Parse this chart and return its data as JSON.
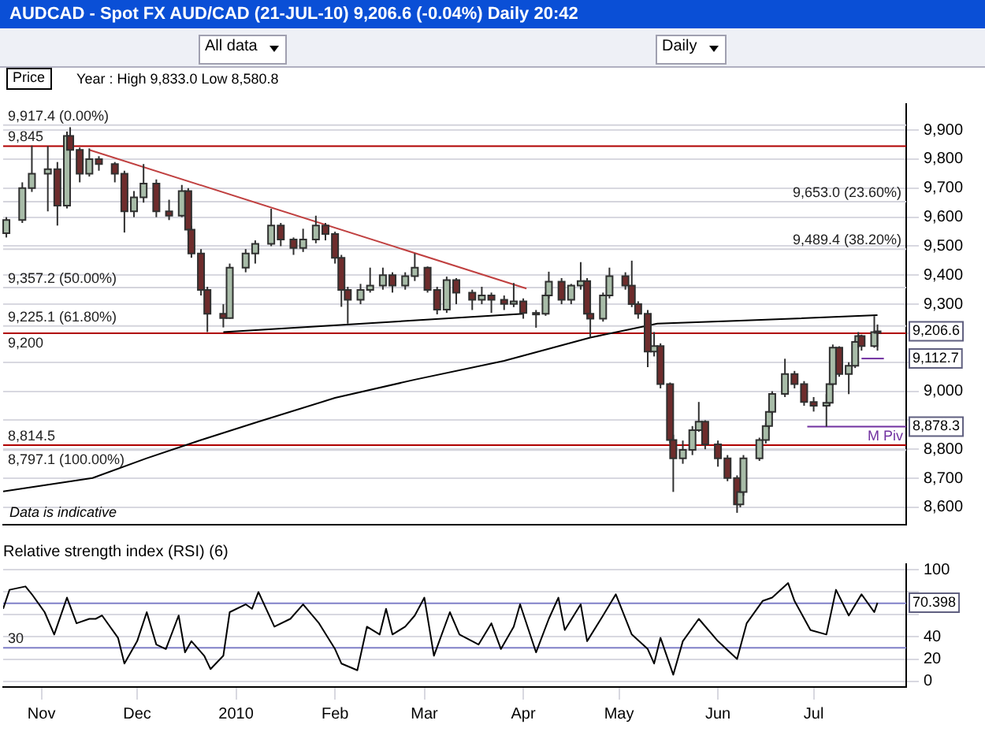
{
  "chart_data": [
    {
      "type": "candlestick",
      "title": "AUDCAD - Spot FX AUD/CAD (21-JUL-10)   9,206.6 (-0.04%)   Daily  20:42",
      "subtitle": "Year : High 9,833.0 Low 8,580.8",
      "ylabel": "Price",
      "x": [
        "2009-10-21",
        "2009-10-26",
        "2009-10-29",
        "2009-11-03",
        "2009-11-06",
        "2009-11-09",
        "2009-11-10",
        "2009-11-13",
        "2009-11-16",
        "2009-11-19",
        "2009-11-24",
        "2009-11-27",
        "2009-11-30",
        "2009-12-03",
        "2009-12-07",
        "2009-12-11",
        "2009-12-15",
        "2009-12-17",
        "2009-12-18",
        "2009-12-21",
        "2009-12-23",
        "2009-12-28",
        "2009-12-30",
        "2010-01-04",
        "2010-01-07",
        "2010-01-12",
        "2010-01-15",
        "2010-01-19",
        "2010-01-22",
        "2010-01-26",
        "2010-01-29",
        "2010-02-01",
        "2010-02-03",
        "2010-02-05",
        "2010-02-09",
        "2010-02-12",
        "2010-02-16",
        "2010-02-19",
        "2010-02-23",
        "2010-02-26",
        "2010-03-02",
        "2010-03-05",
        "2010-03-08",
        "2010-03-11",
        "2010-03-16",
        "2010-03-19",
        "2010-03-22",
        "2010-03-26",
        "2010-03-29",
        "2010-04-01",
        "2010-04-05",
        "2010-04-08",
        "2010-04-09",
        "2010-04-13",
        "2010-04-16",
        "2010-04-19",
        "2010-04-21",
        "2010-04-22",
        "2010-04-26",
        "2010-04-28",
        "2010-05-03",
        "2010-05-05",
        "2010-05-07",
        "2010-05-10",
        "2010-05-12",
        "2010-05-14",
        "2010-05-17",
        "2010-05-18",
        "2010-05-21",
        "2010-05-24",
        "2010-05-26",
        "2010-05-28",
        "2010-06-01",
        "2010-06-04",
        "2010-06-07",
        "2010-06-08",
        "2010-06-09",
        "2010-06-14",
        "2010-06-16",
        "2010-06-17",
        "2010-06-18",
        "2010-06-22",
        "2010-06-25",
        "2010-06-28",
        "2010-07-01",
        "2010-07-05",
        "2010-07-06",
        "2010-07-07",
        "2010-07-09",
        "2010-07-12",
        "2010-07-14",
        "2010-07-15",
        "2010-07-16",
        "2010-07-20",
        "2010-07-21"
      ],
      "ohlc": [
        [
          9545,
          9600,
          9530,
          9590
        ],
        [
          9590,
          9720,
          9580,
          9700
        ],
        [
          9700,
          9847,
          9687,
          9750
        ],
        [
          9750,
          9845,
          9620,
          9765
        ],
        [
          9765,
          9790,
          9571,
          9640
        ],
        [
          9640,
          9895,
          9630,
          9880
        ],
        [
          9880,
          9910,
          9820,
          9832
        ],
        [
          9832,
          9840,
          9720,
          9750
        ],
        [
          9750,
          9837,
          9740,
          9800
        ],
        [
          9800,
          9810,
          9760,
          9783
        ],
        [
          9783,
          9790,
          9720,
          9750
        ],
        [
          9750,
          9760,
          9547,
          9620
        ],
        [
          9620,
          9690,
          9600,
          9668
        ],
        [
          9668,
          9783,
          9650,
          9716
        ],
        [
          9716,
          9730,
          9600,
          9620
        ],
        [
          9620,
          9660,
          9590,
          9605
        ],
        [
          9605,
          9711,
          9600,
          9690
        ],
        [
          9690,
          9700,
          9540,
          9557
        ],
        [
          9557,
          9570,
          9460,
          9475
        ],
        [
          9475,
          9490,
          9330,
          9349
        ],
        [
          9349,
          9360,
          9204,
          9267
        ],
        [
          9267,
          9300,
          9220,
          9252
        ],
        [
          9252,
          9440,
          9250,
          9426
        ],
        [
          9426,
          9490,
          9410,
          9475
        ],
        [
          9475,
          9520,
          9440,
          9508
        ],
        [
          9508,
          9629,
          9500,
          9571
        ],
        [
          9571,
          9580,
          9500,
          9523
        ],
        [
          9523,
          9530,
          9470,
          9494
        ],
        [
          9494,
          9560,
          9480,
          9523
        ],
        [
          9523,
          9605,
          9510,
          9571
        ],
        [
          9571,
          9580,
          9520,
          9542
        ],
        [
          9542,
          9550,
          9440,
          9460
        ],
        [
          9460,
          9470,
          9291,
          9349
        ],
        [
          9349,
          9360,
          9233,
          9315
        ],
        [
          9315,
          9370,
          9300,
          9349
        ],
        [
          9349,
          9426,
          9340,
          9364
        ],
        [
          9364,
          9426,
          9350,
          9400
        ],
        [
          9400,
          9410,
          9340,
          9364
        ],
        [
          9364,
          9410,
          9350,
          9397
        ],
        [
          9397,
          9475,
          9380,
          9426
        ],
        [
          9426,
          9430,
          9340,
          9349
        ],
        [
          9349,
          9360,
          9265,
          9281
        ],
        [
          9281,
          9395,
          9270,
          9383
        ],
        [
          9383,
          9390,
          9300,
          9340
        ],
        [
          9340,
          9350,
          9280,
          9315
        ],
        [
          9315,
          9360,
          9300,
          9330
        ],
        [
          9330,
          9340,
          9270,
          9315
        ],
        [
          9315,
          9330,
          9280,
          9301
        ],
        [
          9301,
          9373,
          9290,
          9310
        ],
        [
          9310,
          9320,
          9250,
          9270
        ],
        [
          9270,
          9280,
          9219,
          9267
        ],
        [
          9267,
          9340,
          9260,
          9330
        ],
        [
          9330,
          9412,
          9320,
          9378
        ],
        [
          9378,
          9390,
          9300,
          9315
        ],
        [
          9315,
          9370,
          9300,
          9364
        ],
        [
          9364,
          9445,
          9350,
          9380
        ],
        [
          9380,
          9390,
          9260,
          9267
        ],
        [
          9267,
          9280,
          9185,
          9250
        ],
        [
          9250,
          9340,
          9240,
          9330
        ],
        [
          9330,
          9426,
          9320,
          9397
        ],
        [
          9397,
          9410,
          9350,
          9364
        ],
        [
          9364,
          9450,
          9290,
          9300
        ],
        [
          9300,
          9310,
          9250,
          9267
        ],
        [
          9267,
          9280,
          9083,
          9137
        ],
        [
          9137,
          9204,
          9120,
          9156
        ],
        [
          9156,
          9165,
          9010,
          9025
        ],
        [
          9025,
          9030,
          8820,
          8832
        ],
        [
          8832,
          8850,
          8653,
          8769
        ],
        [
          8769,
          8830,
          8750,
          8798
        ],
        [
          8798,
          8880,
          8780,
          8866
        ],
        [
          8866,
          8963,
          8860,
          8895
        ],
        [
          8895,
          8900,
          8800,
          8817
        ],
        [
          8817,
          8830,
          8740,
          8769
        ],
        [
          8769,
          8780,
          8690,
          8701
        ],
        [
          8701,
          8710,
          8581,
          8610
        ],
        [
          8610,
          8660,
          8600,
          8653
        ],
        [
          8653,
          8780,
          8640,
          8769
        ],
        [
          8769,
          8840,
          8760,
          8832
        ],
        [
          8832,
          8890,
          8820,
          8880
        ],
        [
          8880,
          8935,
          8870,
          8929
        ],
        [
          8929,
          9000,
          8920,
          8991
        ],
        [
          8991,
          9112,
          8980,
          9059
        ],
        [
          9059,
          9070,
          9010,
          9025
        ],
        [
          9025,
          9035,
          8950,
          8963
        ],
        [
          8963,
          8980,
          8930,
          8950
        ],
        [
          8950,
          8990,
          8878,
          8960
        ],
        [
          8960,
          9030,
          8950,
          9025
        ],
        [
          9025,
          9161,
          9020,
          9150
        ],
        [
          9150,
          9155,
          9050,
          9059
        ],
        [
          9059,
          9100,
          8990,
          9088
        ],
        [
          9088,
          9175,
          9080,
          9170
        ],
        [
          9170,
          9204,
          9150,
          9190
        ],
        [
          9190,
          9195,
          9140,
          9156
        ],
        [
          9156,
          9259,
          9150,
          9204
        ],
        [
          9204,
          9230,
          9140,
          9206.6
        ]
      ],
      "series": [
        {
          "type": "line",
          "color": "#000000",
          "x": [
            "2009-10-20",
            "2009-11-17",
            "2009-12-04",
            "2009-12-21",
            "2010-01-08",
            "2010-02-01",
            "2010-02-26",
            "2010-03-26",
            "2010-04-22",
            "2010-05-13",
            "2010-06-08",
            "2010-07-21"
          ],
          "values": [
            8655,
            8701,
            8769,
            8832,
            8895,
            8977,
            9040,
            9105,
            9185,
            9233,
            9243,
            9262
          ]
        },
        {
          "type": "line",
          "color": "#c04040",
          "x": [
            "2009-11-16",
            "2010-04-02"
          ],
          "values": [
            9832,
            9354
          ]
        },
        {
          "type": "line",
          "color": "#000000",
          "x": [
            "2009-12-28",
            "2010-04-01"
          ],
          "values": [
            9204,
            9267
          ]
        },
        {
          "type": "line",
          "color": "#7030a0",
          "x": [
            "2010-07-16",
            "2010-07-23"
          ],
          "values": [
            9112.7,
            9112.7
          ]
        },
        {
          "type": "line",
          "name": "M Piv",
          "color": "#7030a0",
          "x": [
            "2010-06-29",
            "2010-07-30"
          ],
          "values": [
            8878.3,
            8878.3
          ]
        }
      ],
      "xlim": [
        "2009-10-20",
        "2010-07-30"
      ],
      "ylim": [
        8540,
        9990
      ],
      "yticks": [
        {
          "value": 8600,
          "label": "8,600"
        },
        {
          "value": 8700,
          "label": "8,700"
        },
        {
          "value": 8800,
          "label": "8,800"
        },
        {
          "value": 8900,
          "label": null
        },
        {
          "value": 9000,
          "label": "9,000"
        },
        {
          "value": 9100,
          "label": null
        },
        {
          "value": 9200,
          "label": null
        },
        {
          "value": 9300,
          "label": "9,300"
        },
        {
          "value": 9400,
          "label": "9,400"
        },
        {
          "value": 9500,
          "label": "9,500"
        },
        {
          "value": 9600,
          "label": "9,600"
        },
        {
          "value": 9700,
          "label": "9,700"
        },
        {
          "value": 9800,
          "label": "9,800"
        },
        {
          "value": 9900,
          "label": "9,900"
        }
      ],
      "tick_labels": "y",
      "grid": "y",
      "ref_lines": [
        {
          "axis": "y",
          "value": 9917.4,
          "label": "9,917.4 (0.00%)",
          "color": "#d4d4dc"
        },
        {
          "axis": "y",
          "value": 9845,
          "label": "9,845",
          "color": "#b00000"
        },
        {
          "axis": "y",
          "value": 9653.0,
          "label": "9,653.0 (23.60%)",
          "color": "#d4d4dc"
        },
        {
          "axis": "y",
          "value": 9489.4,
          "label": "9,489.4 (38.20%)",
          "color": "#d4d4dc"
        },
        {
          "axis": "y",
          "value": 9357.2,
          "label": "9,357.2 (50.00%)",
          "color": "#d4d4dc"
        },
        {
          "axis": "y",
          "value": 9225.1,
          "label": "9,225.1 (61.80%)",
          "color": "#d4d4dc"
        },
        {
          "axis": "y",
          "value": 9200,
          "label": "9,200",
          "color": "#b00000"
        },
        {
          "axis": "y",
          "value": 8814.5,
          "label": "8,814.5",
          "color": "#b00000"
        },
        {
          "axis": "y",
          "value": 8797.1,
          "label": "8,797.1 (100.00%)",
          "color": "#d4d4dc"
        }
      ],
      "annotations": [
        "All data",
        "Daily",
        "Data is indicative",
        {
          "text": "9,206.6",
          "x": "2010-07-21",
          "y": 9206.6
        },
        {
          "text": "9,112.7",
          "x": "2010-07-23",
          "y": 9112.7
        },
        {
          "text": "8,878.3",
          "x": "2010-07-30",
          "y": 8878.3
        }
      ]
    },
    {
      "type": "line",
      "title": "Relative strength index (RSI) (6)",
      "series": [
        {
          "color": "#000000",
          "x": [
            "2009-10-20",
            "2009-10-22",
            "2009-10-27",
            "2009-10-29",
            "2009-11-02",
            "2009-11-05",
            "2009-11-09",
            "2009-11-12",
            "2009-11-16",
            "2009-11-18",
            "2009-11-20",
            "2009-11-25",
            "2009-11-27",
            "2009-12-01",
            "2009-12-04",
            "2009-12-07",
            "2009-12-10",
            "2009-12-14",
            "2009-12-16",
            "2009-12-18",
            "2009-12-22",
            "2009-12-24",
            "2009-12-28",
            "2009-12-30",
            "2010-01-04",
            "2010-01-06",
            "2010-01-08",
            "2010-01-13",
            "2010-01-18",
            "2010-01-22",
            "2010-01-27",
            "2010-02-01",
            "2010-02-03",
            "2010-02-08",
            "2010-02-11",
            "2010-02-15",
            "2010-02-17",
            "2010-02-19",
            "2010-02-23",
            "2010-02-26",
            "2010-03-01",
            "2010-03-04",
            "2010-03-09",
            "2010-03-12",
            "2010-03-18",
            "2010-03-22",
            "2010-03-25",
            "2010-03-29",
            "2010-03-31",
            "2010-04-05",
            "2010-04-09",
            "2010-04-12",
            "2010-04-14",
            "2010-04-19",
            "2010-04-21",
            "2010-04-26",
            "2010-04-30",
            "2010-05-05",
            "2010-05-10",
            "2010-05-12",
            "2010-05-14",
            "2010-05-18",
            "2010-05-21",
            "2010-05-26",
            "2010-06-01",
            "2010-06-07",
            "2010-06-10",
            "2010-06-15",
            "2010-06-18",
            "2010-06-23",
            "2010-06-25",
            "2010-06-30",
            "2010-07-05",
            "2010-07-08",
            "2010-07-12",
            "2010-07-16",
            "2010-07-20",
            "2010-07-21"
          ],
          "values": [
            65,
            82,
            85,
            78,
            62,
            42,
            75,
            52,
            56,
            56,
            59,
            39,
            16,
            36,
            62,
            33,
            29,
            59,
            26,
            36,
            23,
            11,
            23,
            62,
            69,
            65,
            80,
            49,
            56,
            69,
            52,
            29,
            16,
            10,
            49,
            42,
            65,
            42,
            49,
            59,
            75,
            23,
            62,
            42,
            33,
            52,
            29,
            49,
            69,
            26,
            56,
            75,
            46,
            69,
            36,
            59,
            78,
            42,
            29,
            16,
            39,
            6,
            36,
            56,
            36,
            20,
            52,
            72,
            75,
            88,
            72,
            46,
            42,
            82,
            59,
            78,
            62,
            70.398
          ]
        }
      ],
      "xlim": [
        "2009-10-20",
        "2010-07-30"
      ],
      "xticks": [
        {
          "value": "2009-11-01",
          "label": "Nov"
        },
        {
          "value": "2009-12-01",
          "label": "Dec"
        },
        {
          "value": "2010-01-01",
          "label": "2010"
        },
        {
          "value": "2010-02-01",
          "label": "Feb"
        },
        {
          "value": "2010-03-01",
          "label": "Mar"
        },
        {
          "value": "2010-04-01",
          "label": "Apr"
        },
        {
          "value": "2010-05-01",
          "label": "May"
        },
        {
          "value": "2010-06-01",
          "label": "Jun"
        },
        {
          "value": "2010-07-01",
          "label": "Jul"
        }
      ],
      "ylim": [
        -5,
        105
      ],
      "yticks": [
        0,
        20,
        40,
        {
          "value": 60,
          "label": null
        },
        {
          "value": 80,
          "label": null
        },
        100
      ],
      "grid": "y",
      "ref_lines": [
        {
          "axis": "y",
          "value": 70,
          "color": "#8080c8"
        },
        {
          "axis": "y",
          "value": 30,
          "label": "30",
          "color": "#8080c8"
        }
      ],
      "annotations": [
        {
          "text": "70.398",
          "x": "2010-07-21",
          "y": 70.398
        }
      ]
    }
  ]
}
